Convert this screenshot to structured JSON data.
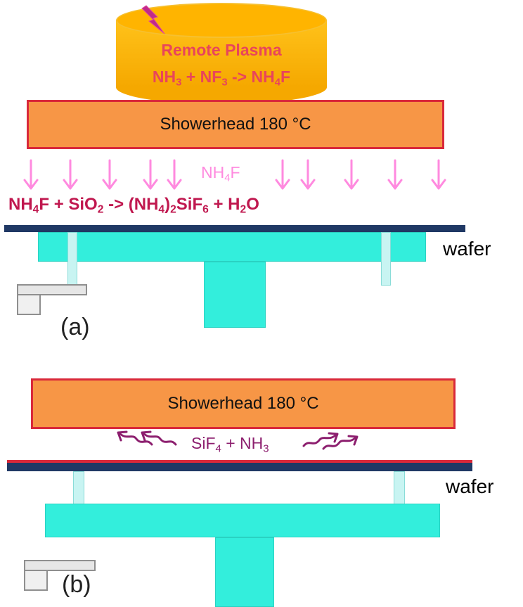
{
  "panel_a": {
    "plasma": {
      "title": "Remote Plasma",
      "reaction": {
        "r1": "NH",
        "r1_sub": "3",
        "plus": " + ",
        "r2": "NF",
        "r2_sub": "3",
        "arrow": " -> ",
        "p1": "NH",
        "p1_sub": "4",
        "p1_end": "F"
      }
    },
    "showerhead_label": "Showerhead 180 °C",
    "gas_label": {
      "base": "NH",
      "sub": "4",
      "end": "F"
    },
    "surface_reaction": {
      "a": "NH",
      "a_sub": "4",
      "b": "F + SiO",
      "b_sub": "2",
      "c": " -> (NH",
      "c_sub": "4",
      "d": ")",
      "d_sub": "2",
      "e": "SiF",
      "e_sub": "6",
      "f": " + H",
      "f_sub": "2",
      "g": "O"
    },
    "wafer_label": "wafer",
    "panel_label": "(a)"
  },
  "panel_b": {
    "showerhead_label": "Showerhead 180 °C",
    "desorption": {
      "a": "SiF",
      "a_sub": "4",
      "b": " + NH",
      "b_sub": "3"
    },
    "wafer_label": "wafer",
    "panel_label": "(b)"
  },
  "colors": {
    "showerhead_fill": "#f79646",
    "showerhead_border": "#d9293a",
    "plasma_fill": "#ffb400",
    "chuck": "#33eedc",
    "wafer": "#1f3864",
    "gas_arrows": "#ff8adf",
    "desorption": "#8c1e6e"
  }
}
